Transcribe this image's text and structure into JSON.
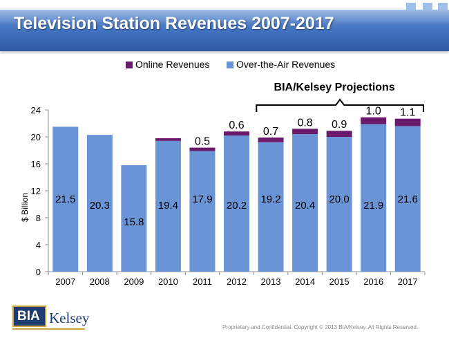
{
  "slide": {
    "title": "Television Station Revenues 2007-2017",
    "footer": "Proprietary and Confidential. Copyright © 2013 BIA/Kelsey. All Rights Reserved.",
    "logo_text": "BIA/Kelsey",
    "logo_box_text": "BIA",
    "logo_word_text": "Kelsey"
  },
  "colors": {
    "title_bar": "#3f6fbd",
    "online": "#6b1a6b",
    "over_the_air": "#6b94d6"
  },
  "chart_data": {
    "type": "bar",
    "stacked": true,
    "title": "",
    "xlabel": "",
    "ylabel": "$ Billion",
    "ylim": [
      0,
      24
    ],
    "yticks": [
      0,
      4,
      8,
      12,
      16,
      20,
      24
    ],
    "grid": false,
    "legend_position": "top",
    "categories": [
      "2007",
      "2008",
      "2009",
      "2010",
      "2011",
      "2012",
      "2013",
      "2014",
      "2015",
      "2016",
      "2017"
    ],
    "series": [
      {
        "name": "Over-the-Air Revenues",
        "color": "#6b94d6",
        "values": [
          21.5,
          20.3,
          15.8,
          19.4,
          17.9,
          20.2,
          19.2,
          20.4,
          20.0,
          21.9,
          21.6
        ],
        "labels": [
          "21.5",
          "20.3",
          "15.8",
          "19.4",
          "17.9",
          "20.2",
          "19.2",
          "20.4",
          "20.0",
          "21.9",
          "21.6"
        ]
      },
      {
        "name": "Online Revenues",
        "color": "#6b1a6b",
        "values": [
          0,
          0,
          0,
          0.4,
          0.5,
          0.6,
          0.7,
          0.8,
          0.9,
          1.0,
          1.1
        ],
        "labels": [
          "",
          "",
          "",
          "",
          "0.5",
          "0.6",
          "0.7",
          "0.8",
          "0.9",
          "1.0",
          "1.1"
        ]
      }
    ],
    "legend": [
      "Online Revenues",
      "Over-the-Air Revenues"
    ],
    "annotation": {
      "text": "BIA/Kelsey Projections",
      "from_category": "2013",
      "to_category": "2017"
    }
  }
}
